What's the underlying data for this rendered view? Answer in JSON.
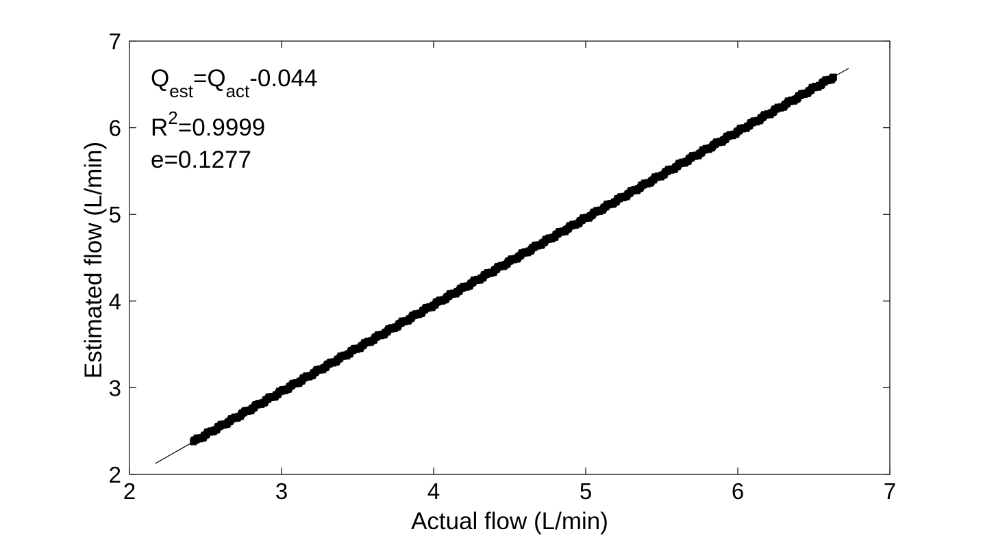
{
  "chart_data": {
    "type": "scatter",
    "title": "",
    "xlabel": "Actual flow (L/min)",
    "ylabel": "Estimated flow (L/min)",
    "xlim": [
      2,
      7
    ],
    "ylim": [
      2,
      7
    ],
    "xticks": [
      "2",
      "3",
      "4",
      "5",
      "6",
      "7"
    ],
    "yticks": [
      "2",
      "3",
      "4",
      "5",
      "6",
      "7"
    ],
    "grid": false,
    "legend": "none",
    "series": [
      {
        "marker": "filled-square",
        "color": "#000000",
        "x_range": [
          2.42,
          6.63
        ]
      }
    ],
    "fit_line": {
      "slope": 1,
      "intercept": -0.044,
      "x_range": [
        2.17,
        6.73
      ],
      "color": "#000000"
    },
    "annotations": {
      "equation": {
        "q1": "Q",
        "sub1": "est",
        "mid": "=Q",
        "sub2": "act",
        "tail": "-0.044"
      },
      "r2": {
        "base": "R",
        "sup": "2",
        "tail": "=0.9999"
      },
      "error": "e=0.1277"
    }
  }
}
